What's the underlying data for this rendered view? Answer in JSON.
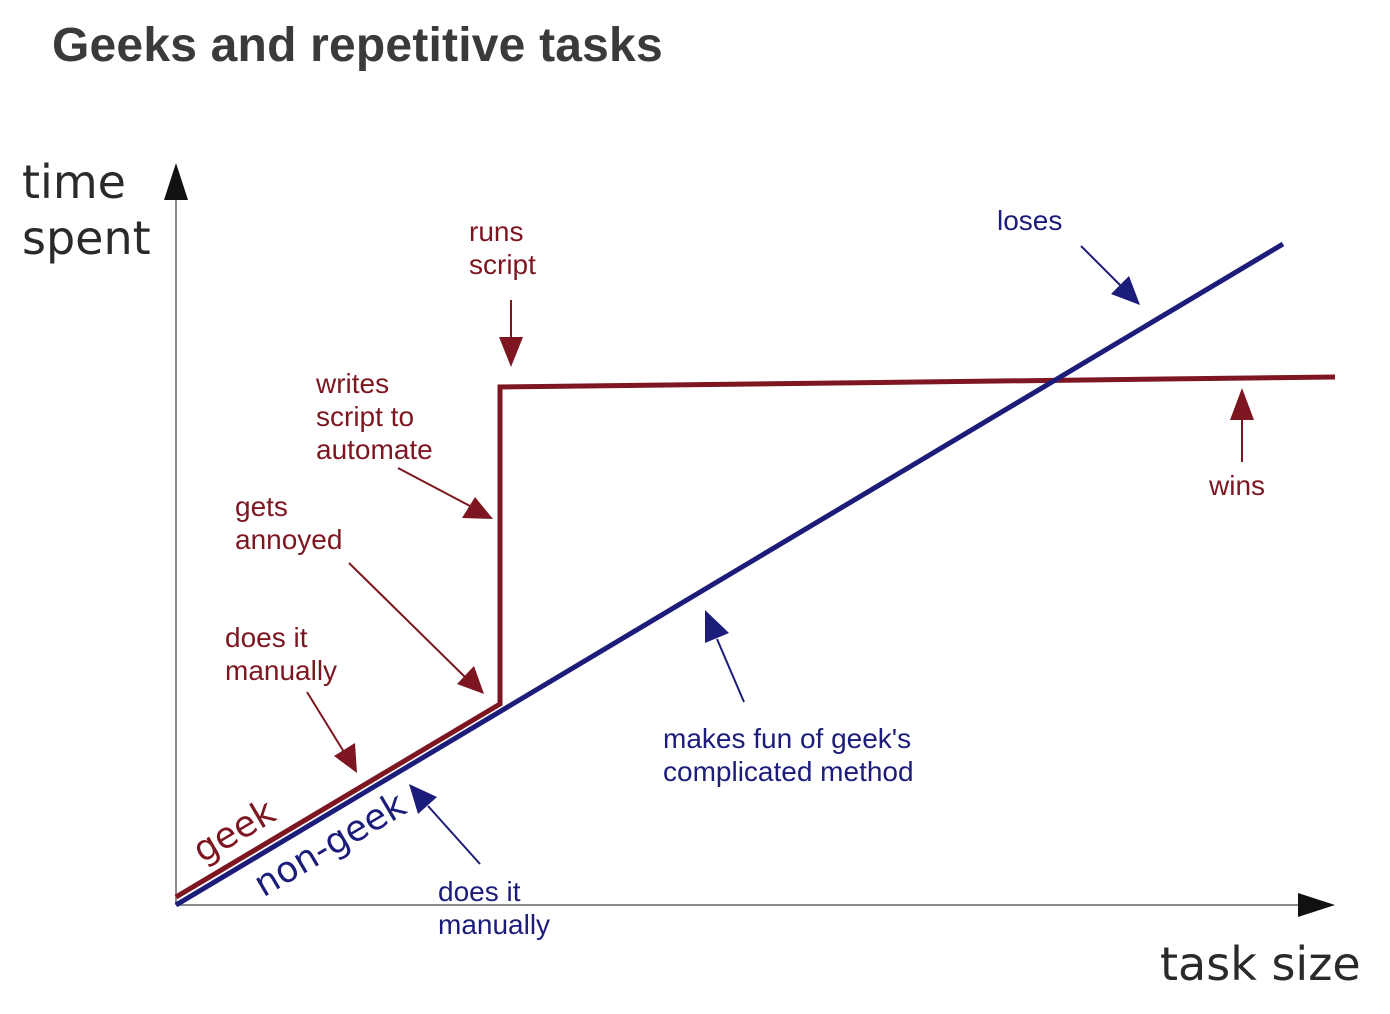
{
  "title": "Geeks and repetitive tasks",
  "axes": {
    "y_label_line1": "time",
    "y_label_line2": "spent",
    "x_label": "task size"
  },
  "series": {
    "geek_label": "geek",
    "nongeek_label": "non-geek"
  },
  "annotations": {
    "runs_script": {
      "line1": "runs",
      "line2": "script"
    },
    "writes_script": {
      "line1": "writes",
      "line2": "script to",
      "line3": "automate"
    },
    "gets_annoyed": {
      "line1": "gets",
      "line2": "annoyed"
    },
    "geek_manual": {
      "line1": "does it",
      "line2": "manually"
    },
    "nongeek_manual": {
      "line1": "does it",
      "line2": "manually"
    },
    "makes_fun": {
      "line1": "makes fun of geek's",
      "line2": "complicated method"
    },
    "loses": "loses",
    "wins": "wins"
  },
  "colors": {
    "geek": "#7d1620",
    "nongeek": "#1c1c7a",
    "axis": "#8a8a8a",
    "axis_arrow": "#111111",
    "title": "#3a3a3a"
  }
}
